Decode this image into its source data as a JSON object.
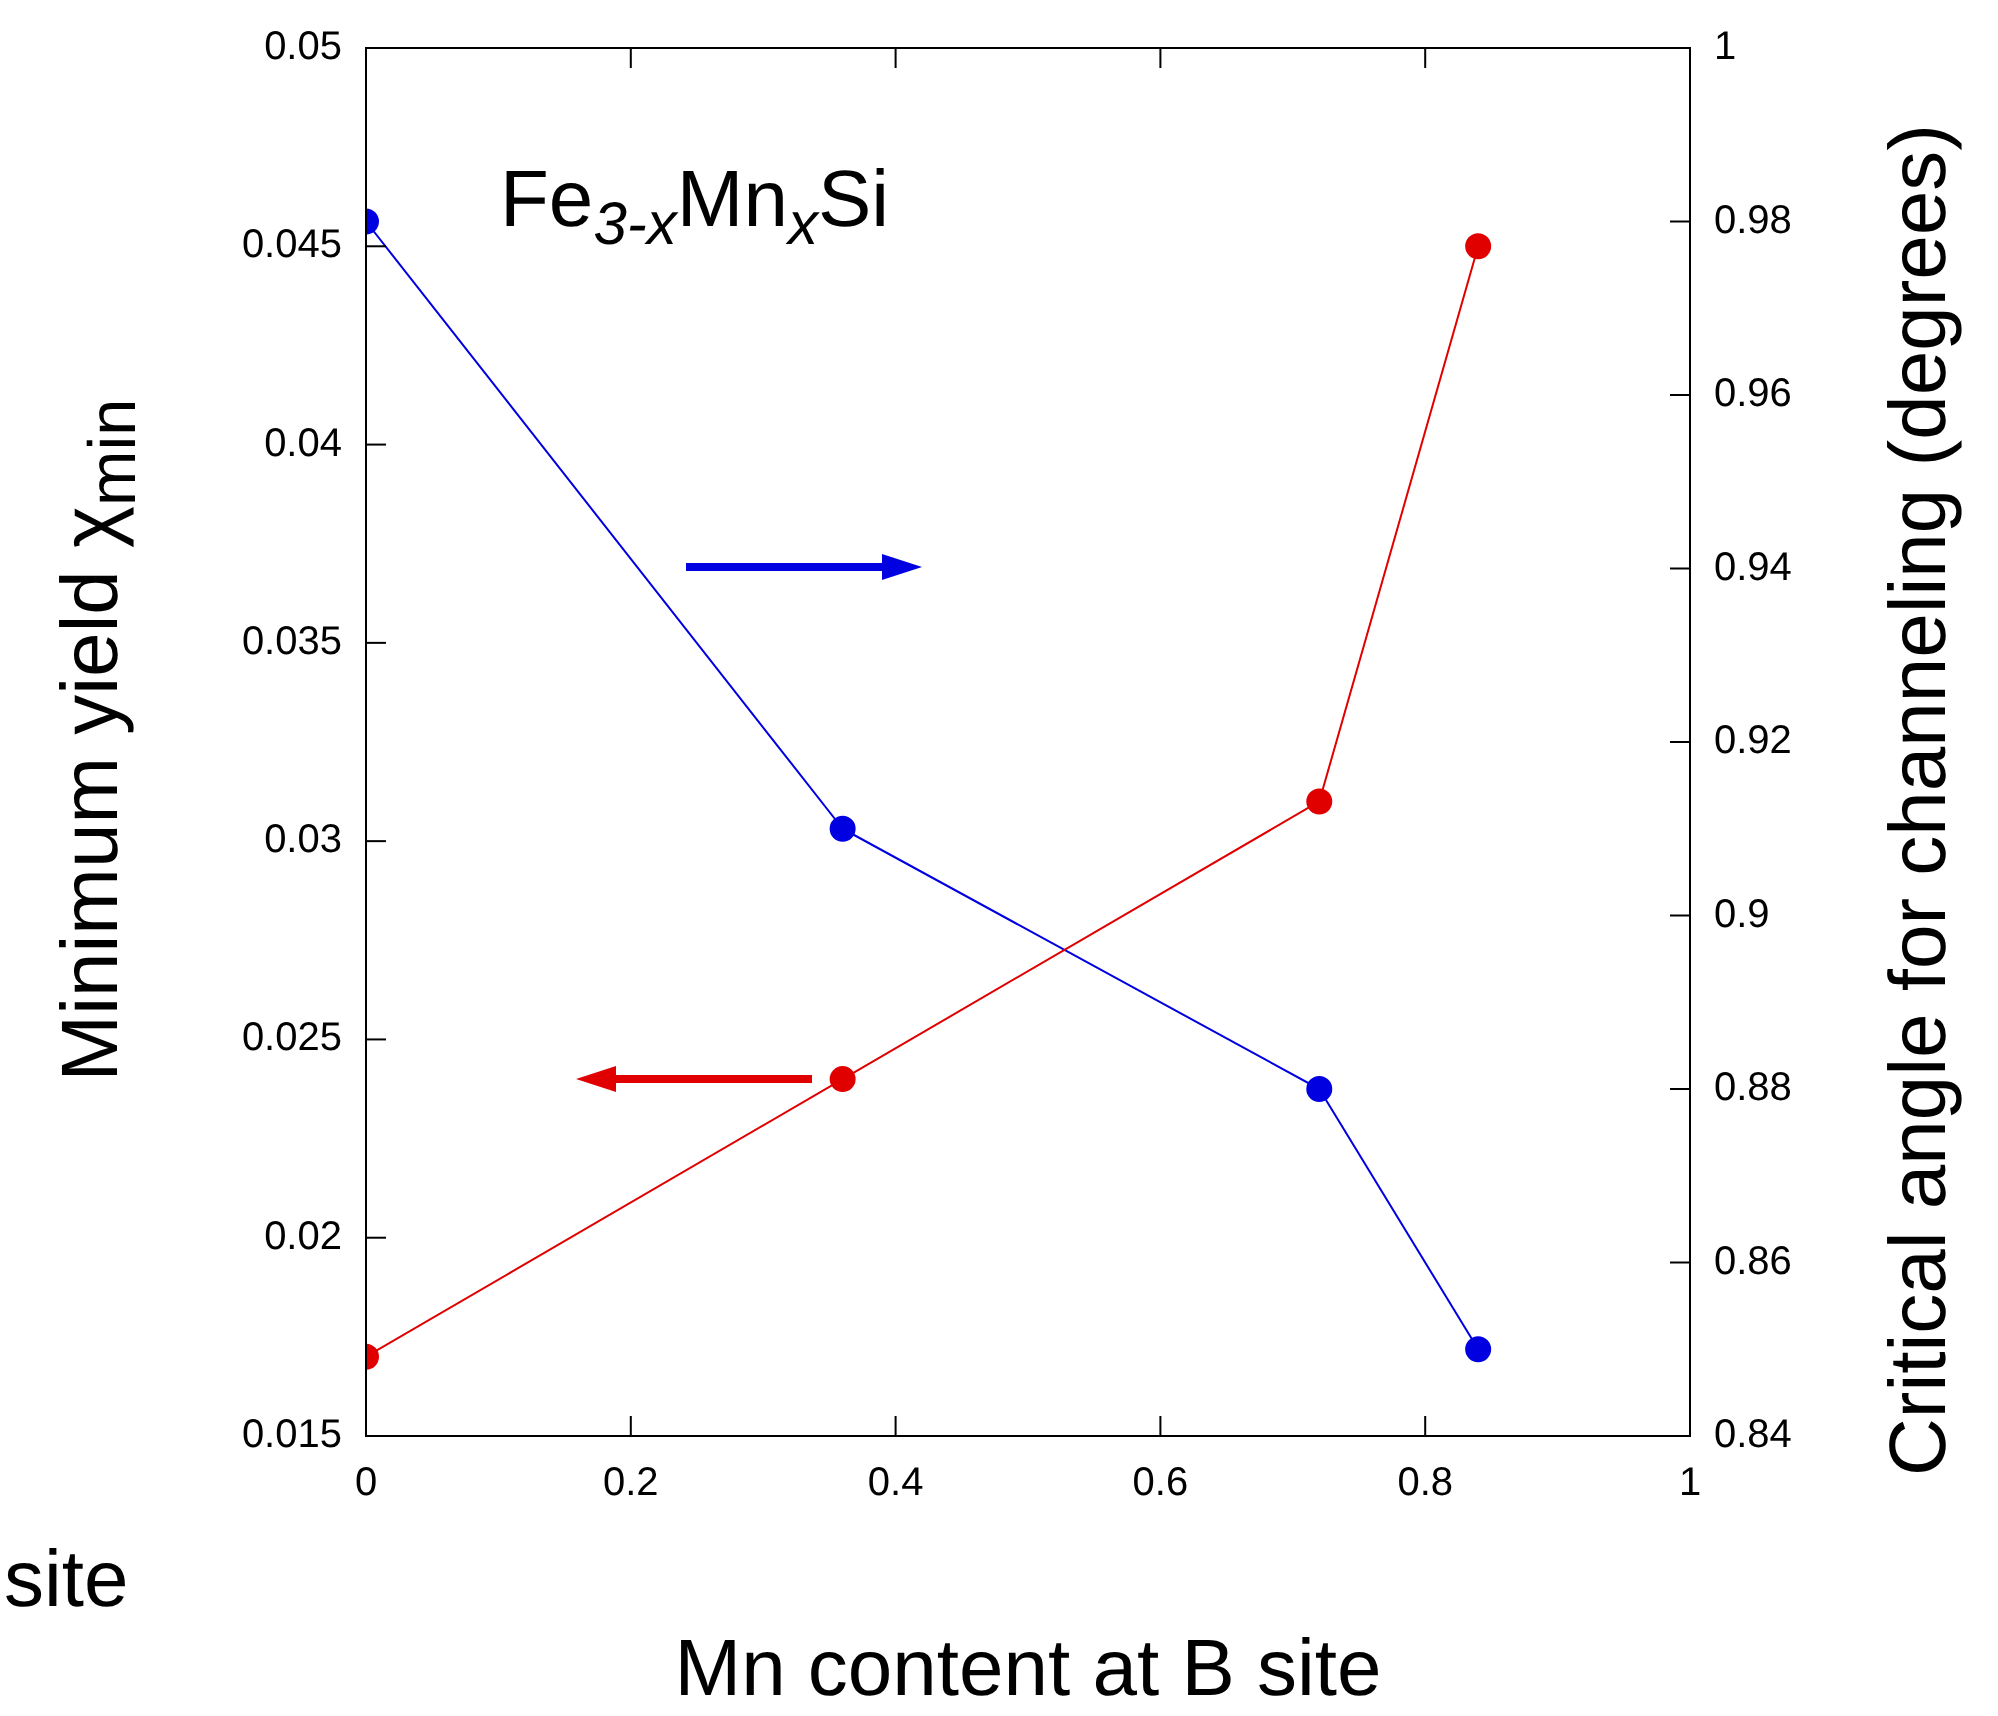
{
  "chart_data": {
    "type": "line",
    "xlabel": "Mn content at B site",
    "ylabel": "Minimum yield χ$_{min}$",
    "y2label": "Critical angle for channeling (degrees)",
    "annotations": [
      "Fe$_{3-x}$Mn$_{x}$Si",
      "site"
    ],
    "x": [
      0,
      0.36,
      0.72,
      0.84
    ],
    "series": [
      {
        "color": "#e00000",
        "values": [
          0.017,
          0.024,
          0.031,
          0.045
        ]
      },
      {
        "color": "#0000e0",
        "axis": "y2",
        "values": [
          0.98,
          0.91,
          0.88,
          0.85
        ]
      }
    ],
    "xlim": [
      0,
      1
    ],
    "xticks": [
      0,
      0.2,
      0.4,
      0.6,
      0.8,
      1
    ],
    "ylim": [
      0.015,
      0.05
    ],
    "yticks": [
      0.015,
      0.02,
      0.025,
      0.03,
      0.035,
      0.04,
      0.045,
      0.05
    ],
    "y2lim": [
      0.84,
      1
    ],
    "y2ticks": [
      0.84,
      0.86,
      0.88,
      0.9,
      0.92,
      0.94,
      0.96,
      0.98,
      1
    ],
    "grid": false,
    "legend": false,
    "marker": "circle",
    "line_style": "solid"
  }
}
